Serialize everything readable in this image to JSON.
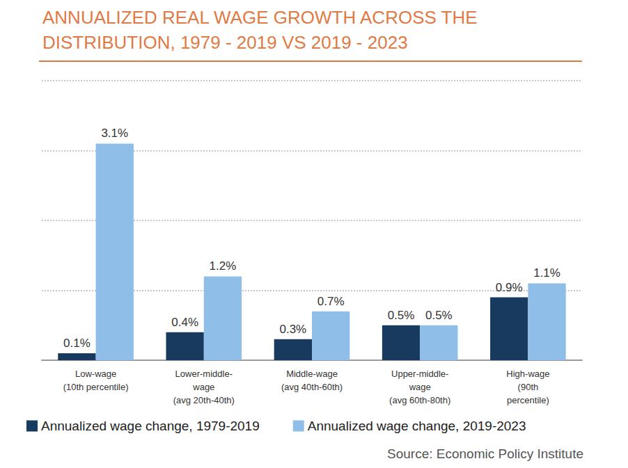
{
  "chart_data": {
    "type": "bar",
    "title": "ANNUALIZED REAL WAGE GROWTH ACROSS THE DISTRIBUTION, 1979 - 2019 VS 2019 - 2023",
    "source": "Source: Economic Policy Institute",
    "categories": [
      "Low-wage\n(10th percentile)",
      "Lower-middle-\nwage\n(avg 20th-40th)",
      "Middle-wage\n(avg 40th-60th)",
      "Upper-middle-\nwage\n(avg 60th-80th)",
      "High-wage\n(90th\npercentile)"
    ],
    "series": [
      {
        "name": "Annualized wage change, 1979-2019",
        "color": "#173a5e",
        "values": [
          0.1,
          0.4,
          0.3,
          0.5,
          0.9
        ],
        "value_labels": [
          "0.1%",
          "0.4%",
          "0.3%",
          "0.5%",
          "0.9%"
        ]
      },
      {
        "name": "Annualized wage change, 2019-2023",
        "color": "#8fbfe8",
        "values": [
          3.1,
          1.2,
          0.7,
          0.5,
          1.1
        ],
        "value_labels": [
          "3.1%",
          "1.2%",
          "0.7%",
          "0.5%",
          "1.1%"
        ]
      }
    ],
    "ylim": [
      0,
      4
    ],
    "yticks": [
      0,
      1,
      2,
      3,
      4
    ],
    "grid": true,
    "legend": "bottom",
    "data_labels": true,
    "tick_labels": "x"
  }
}
